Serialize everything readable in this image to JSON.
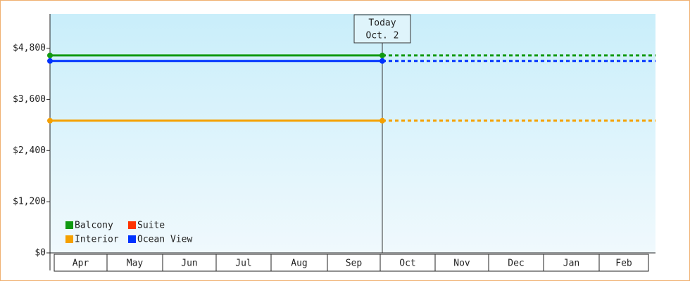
{
  "chart_data": {
    "type": "line",
    "categories": [
      "Apr",
      "May",
      "Jun",
      "Jul",
      "Aug",
      "Sep",
      "Oct",
      "Nov",
      "Dec",
      "Jan",
      "Feb"
    ],
    "ylim": [
      0,
      5600
    ],
    "yticks": [
      {
        "value": 0,
        "label": "$0"
      },
      {
        "value": 1200,
        "label": "$1,200"
      },
      {
        "value": 2400,
        "label": "$2,400"
      },
      {
        "value": 3600,
        "label": "$3,600"
      },
      {
        "value": 4800,
        "label": "$4,800"
      }
    ],
    "annotation": {
      "lines": [
        "Today",
        "Oct. 2"
      ]
    },
    "series": [
      {
        "name": "Balcony",
        "color": "#119911",
        "value": 4630
      },
      {
        "name": "Suite",
        "color": "#ff3300",
        "value": null
      },
      {
        "name": "Interior",
        "color": "#f5a000",
        "value": 3100
      },
      {
        "name": "Ocean View",
        "color": "#0033ff",
        "value": 4500
      }
    ]
  }
}
